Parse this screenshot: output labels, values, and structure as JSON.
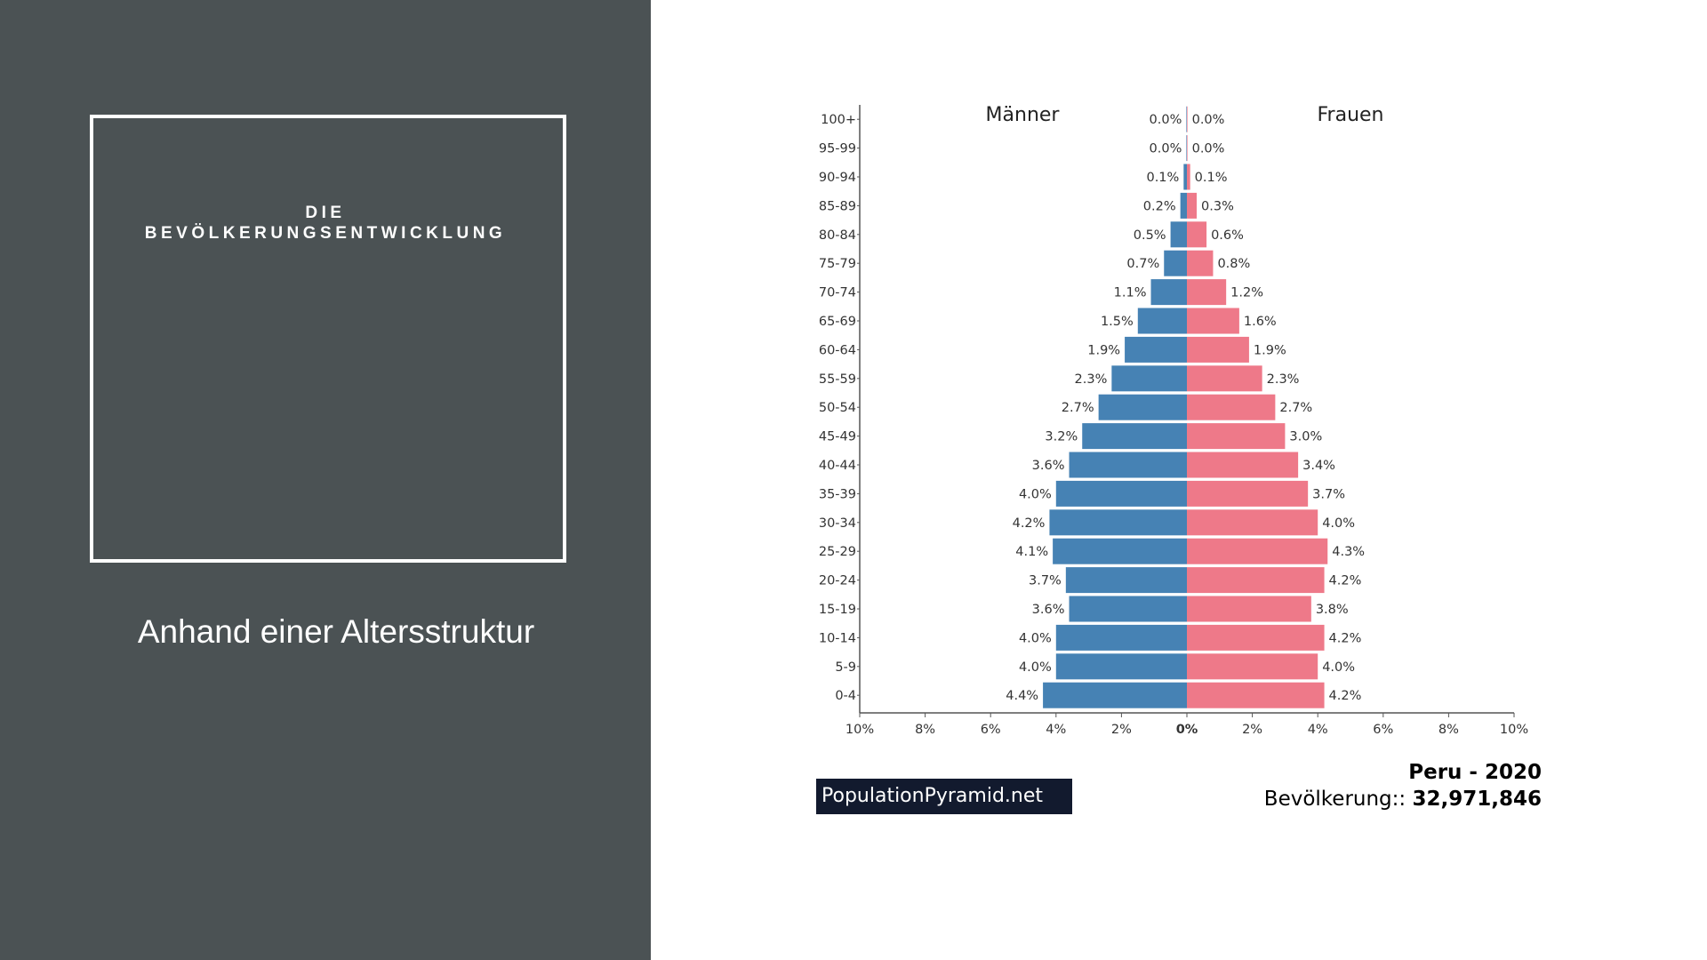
{
  "slide": {
    "title_line1": "DIE",
    "title_line2": "BEVÖLKERUNGSENTWICKLUNG",
    "subtitle": "Anhand einer Altersstruktur"
  },
  "colors": {
    "left_panel": "#4b5254",
    "male": "#4682b4",
    "female": "#ee7989",
    "badge": "#121a2e"
  },
  "chart_data": {
    "type": "bar",
    "orientation": "horizontal-population-pyramid",
    "categories": [
      "100+",
      "95-99",
      "90-94",
      "85-89",
      "80-84",
      "75-79",
      "70-74",
      "65-69",
      "60-64",
      "55-59",
      "50-54",
      "45-49",
      "40-44",
      "35-39",
      "30-34",
      "25-29",
      "20-24",
      "15-19",
      "10-14",
      "5-9",
      "0-4"
    ],
    "series": [
      {
        "name": "Männer",
        "side": "left",
        "values": [
          0.0,
          0.0,
          0.1,
          0.2,
          0.5,
          0.7,
          1.1,
          1.5,
          1.9,
          2.3,
          2.7,
          3.2,
          3.6,
          4.0,
          4.2,
          4.1,
          3.7,
          3.6,
          4.0,
          4.0,
          4.4
        ]
      },
      {
        "name": "Frauen",
        "side": "right",
        "values": [
          0.0,
          0.0,
          0.1,
          0.3,
          0.6,
          0.8,
          1.2,
          1.6,
          1.9,
          2.3,
          2.7,
          3.0,
          3.4,
          3.7,
          4.0,
          4.3,
          4.2,
          3.8,
          4.2,
          4.0,
          4.2
        ]
      }
    ],
    "xlim": [
      -10,
      10
    ],
    "x_ticks": [
      "10%",
      "8%",
      "6%",
      "4%",
      "2%",
      "0%",
      "2%",
      "4%",
      "6%",
      "8%",
      "10%"
    ],
    "value_suffix": "%",
    "source": "PopulationPyramid.net",
    "country_year": "Peru - 2020",
    "population_label": "Bevölkerung::",
    "population_value": "32,971,846"
  }
}
